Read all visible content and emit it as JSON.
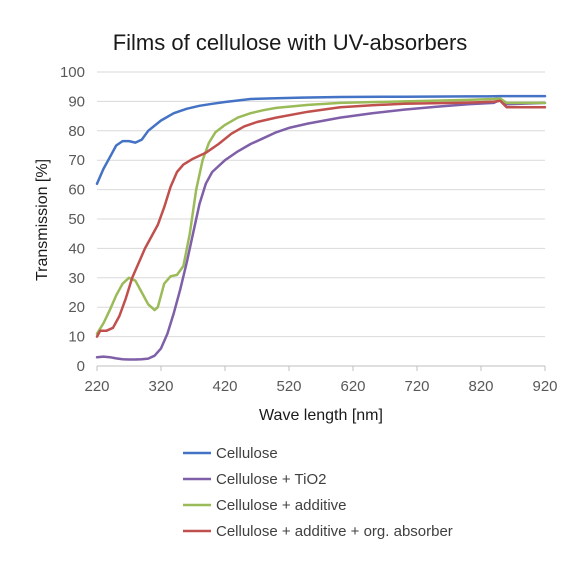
{
  "chart_data": {
    "type": "line",
    "title": "Films of cellulose with UV-absorbers",
    "xlabel": "Wave length [nm]",
    "ylabel": "Transmission [%]",
    "xlim": [
      220,
      920
    ],
    "ylim": [
      0,
      100
    ],
    "x_ticks": [
      "220",
      "320",
      "420",
      "520",
      "620",
      "720",
      "820",
      "920"
    ],
    "y_ticks": [
      "0",
      "10",
      "20",
      "30",
      "40",
      "50",
      "60",
      "70",
      "80",
      "90",
      "100"
    ],
    "grid": "horizontal",
    "legend_position": "bottom",
    "series": [
      {
        "name": "Cellulose",
        "color": "#4472c4",
        "points": [
          [
            220,
            62
          ],
          [
            230,
            67
          ],
          [
            240,
            71
          ],
          [
            250,
            75
          ],
          [
            260,
            76.5
          ],
          [
            270,
            76.5
          ],
          [
            280,
            76
          ],
          [
            290,
            77
          ],
          [
            300,
            80
          ],
          [
            320,
            83.5
          ],
          [
            340,
            86
          ],
          [
            360,
            87.5
          ],
          [
            380,
            88.5
          ],
          [
            400,
            89.2
          ],
          [
            420,
            89.8
          ],
          [
            440,
            90.3
          ],
          [
            460,
            90.8
          ],
          [
            500,
            91.1
          ],
          [
            540,
            91.3
          ],
          [
            600,
            91.5
          ],
          [
            700,
            91.6
          ],
          [
            800,
            91.7
          ],
          [
            830,
            91.7
          ],
          [
            850,
            91.8
          ],
          [
            860,
            91.8
          ],
          [
            920,
            91.8
          ]
        ]
      },
      {
        "name": "Cellulose + TiO2",
        "color": "#7f5fa8",
        "points": [
          [
            220,
            3
          ],
          [
            230,
            3.2
          ],
          [
            240,
            3
          ],
          [
            250,
            2.6
          ],
          [
            260,
            2.3
          ],
          [
            270,
            2.2
          ],
          [
            280,
            2.2
          ],
          [
            290,
            2.3
          ],
          [
            300,
            2.5
          ],
          [
            310,
            3.5
          ],
          [
            320,
            6
          ],
          [
            330,
            11
          ],
          [
            340,
            18
          ],
          [
            350,
            26
          ],
          [
            360,
            35
          ],
          [
            370,
            45
          ],
          [
            380,
            55
          ],
          [
            390,
            62
          ],
          [
            400,
            66
          ],
          [
            420,
            70
          ],
          [
            440,
            73
          ],
          [
            460,
            75.5
          ],
          [
            480,
            77.5
          ],
          [
            500,
            79.5
          ],
          [
            520,
            81
          ],
          [
            550,
            82.5
          ],
          [
            600,
            84.5
          ],
          [
            650,
            86
          ],
          [
            700,
            87.2
          ],
          [
            750,
            88.2
          ],
          [
            800,
            89
          ],
          [
            840,
            89.5
          ],
          [
            850,
            90.5
          ],
          [
            860,
            89
          ],
          [
            920,
            89.5
          ]
        ]
      },
      {
        "name": "Cellulose + additive",
        "color": "#9bbb59",
        "points": [
          [
            220,
            11
          ],
          [
            230,
            14.5
          ],
          [
            240,
            19
          ],
          [
            250,
            24
          ],
          [
            260,
            28
          ],
          [
            270,
            30
          ],
          [
            280,
            29
          ],
          [
            290,
            25
          ],
          [
            300,
            21
          ],
          [
            310,
            19
          ],
          [
            315,
            20
          ],
          [
            325,
            28
          ],
          [
            335,
            30.5
          ],
          [
            345,
            31
          ],
          [
            355,
            34
          ],
          [
            365,
            45
          ],
          [
            375,
            60
          ],
          [
            385,
            70
          ],
          [
            395,
            76
          ],
          [
            405,
            79.5
          ],
          [
            420,
            82
          ],
          [
            440,
            84.5
          ],
          [
            460,
            86
          ],
          [
            480,
            87
          ],
          [
            500,
            87.8
          ],
          [
            550,
            88.8
          ],
          [
            600,
            89.5
          ],
          [
            700,
            90
          ],
          [
            800,
            90.5
          ],
          [
            840,
            90.8
          ],
          [
            850,
            91
          ],
          [
            860,
            89.5
          ],
          [
            920,
            89.5
          ]
        ]
      },
      {
        "name": "Cellulose + additive + org. absorber",
        "color": "#c0504d",
        "points": [
          [
            220,
            10
          ],
          [
            225,
            12
          ],
          [
            235,
            12
          ],
          [
            245,
            13
          ],
          [
            255,
            17
          ],
          [
            265,
            23
          ],
          [
            275,
            30
          ],
          [
            285,
            35
          ],
          [
            295,
            40
          ],
          [
            305,
            44
          ],
          [
            315,
            48
          ],
          [
            325,
            54
          ],
          [
            335,
            61
          ],
          [
            345,
            66
          ],
          [
            355,
            68.5
          ],
          [
            370,
            70.5
          ],
          [
            390,
            72.5
          ],
          [
            410,
            75.5
          ],
          [
            430,
            79
          ],
          [
            450,
            81.5
          ],
          [
            470,
            83
          ],
          [
            500,
            84.5
          ],
          [
            550,
            86.5
          ],
          [
            600,
            88
          ],
          [
            650,
            88.7
          ],
          [
            700,
            89.2
          ],
          [
            800,
            89.6
          ],
          [
            840,
            89.9
          ],
          [
            850,
            90.2
          ],
          [
            860,
            88
          ],
          [
            920,
            88
          ]
        ]
      }
    ]
  }
}
